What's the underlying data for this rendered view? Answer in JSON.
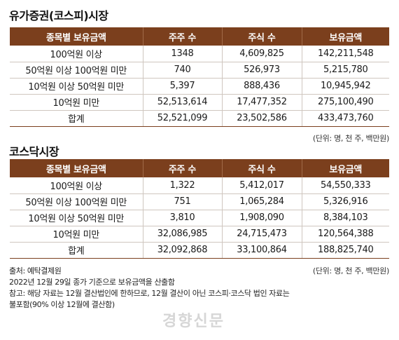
{
  "kospi": {
    "title": "유가증권(코스피)시장",
    "headers": [
      "종목별 보유금액",
      "주주 수",
      "주식 수",
      "보유금액"
    ],
    "rows": [
      [
        "100억원 이상",
        "1348",
        "4,609,825",
        "142,211,548"
      ],
      [
        "50억원 이상 100억원 미만",
        "740",
        "526,973",
        "5,215,780"
      ],
      [
        "10억원 이상 50억원 미만",
        "5,397",
        "888,436",
        "10,945,942"
      ],
      [
        "10억원 미만",
        "52,513,614",
        "17,477,352",
        "275,100,490"
      ],
      [
        "합계",
        "52,521,099",
        "23,502,586",
        "433,473,760"
      ]
    ],
    "unit": "(단위: 명, 천 주, 백만원)"
  },
  "kosdaq": {
    "title": "코스닥시장",
    "headers": [
      "종목별 보유금액",
      "주주 수",
      "주식 수",
      "보유금액"
    ],
    "rows": [
      [
        "100억원 이상",
        "1,322",
        "5,412,017",
        "54,550,333"
      ],
      [
        "50억원 이상 100억원 미만",
        "751",
        "1,065,284",
        "5,326,916"
      ],
      [
        "10억원 이상 50억원 미만",
        "3,810",
        "1,908,090",
        "8,384,103"
      ],
      [
        "10억원 미만",
        "32,086,985",
        "24,715,473",
        "120,564,388"
      ],
      [
        "합계",
        "32,092,868",
        "33,100,864",
        "188,825,740"
      ]
    ],
    "unit": "(단위: 명, 천 주, 백만원)"
  },
  "notes": [
    "출처: 예탁결제원",
    "2022년 12월 29일 종가 기준으로 보유금액을 산출함",
    "참고: 해당 자료는 12월 결산법인에 한하므로, 12월 결산이 아닌 코스피·코스닥 법인 자료는",
    "불포함(90% 이상 12월에 결산함)"
  ],
  "watermark": "경향신문"
}
